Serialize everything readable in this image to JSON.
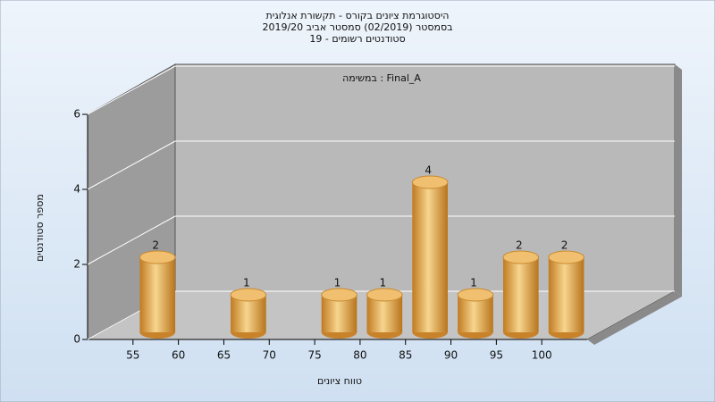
{
  "chart_data": {
    "type": "histogram",
    "title": [
      "היסטוגרמת ציונים בקורס - תקשורת אנלוגית",
      "בסמסטר  (02/2019)  סמסטר אביב 2019/20",
      "סטודנטים רשומים - 19"
    ],
    "annotation": "במשימה : Final_A",
    "xlabel": "טווח ציונים",
    "ylabel": "מספר סטודנטים",
    "bins": [
      55,
      60,
      65,
      70,
      75,
      80,
      85,
      90,
      95,
      100,
      105
    ],
    "counts": [
      2,
      0,
      1,
      0,
      1,
      1,
      4,
      1,
      2,
      2
    ],
    "color": "#e0a040",
    "xlim": [
      50,
      105
    ],
    "xticks": [
      55,
      60,
      65,
      70,
      75,
      80,
      85,
      90,
      95,
      100
    ],
    "ylim": [
      0,
      6
    ],
    "yticks": [
      0,
      2,
      4,
      6
    ],
    "grid": true
  }
}
